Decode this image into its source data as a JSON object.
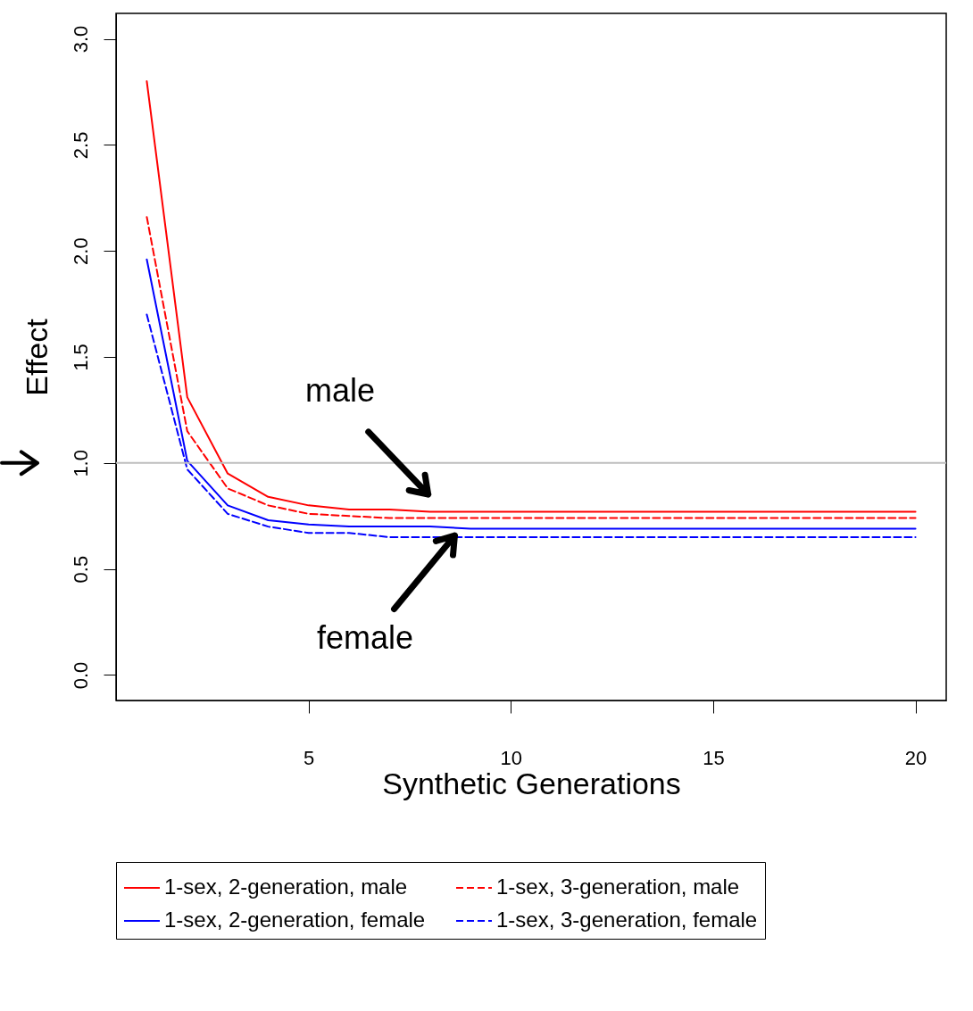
{
  "chart_data": {
    "type": "line",
    "xlabel": "Synthetic Generations",
    "ylabel": "Effect",
    "x": [
      1,
      2,
      3,
      4,
      5,
      6,
      7,
      8,
      9,
      10,
      11,
      12,
      13,
      14,
      15,
      16,
      17,
      18,
      19,
      20
    ],
    "series": [
      {
        "name": "1-sex, 2-generation, male",
        "color": "#ff0000",
        "line_style": "solid",
        "values": [
          2.8,
          1.31,
          0.95,
          0.84,
          0.8,
          0.78,
          0.78,
          0.77,
          0.77,
          0.77,
          0.77,
          0.77,
          0.77,
          0.77,
          0.77,
          0.77,
          0.77,
          0.77,
          0.77,
          0.77
        ]
      },
      {
        "name": "1-sex, 3-generation, male",
        "color": "#ff0000",
        "line_style": "dashed",
        "values": [
          2.16,
          1.15,
          0.88,
          0.8,
          0.76,
          0.75,
          0.74,
          0.74,
          0.74,
          0.74,
          0.74,
          0.74,
          0.74,
          0.74,
          0.74,
          0.74,
          0.74,
          0.74,
          0.74,
          0.74
        ]
      },
      {
        "name": "1-sex, 2-generation, female",
        "color": "#0000ff",
        "line_style": "solid",
        "values": [
          1.96,
          1.01,
          0.8,
          0.73,
          0.71,
          0.7,
          0.7,
          0.7,
          0.69,
          0.69,
          0.69,
          0.69,
          0.69,
          0.69,
          0.69,
          0.69,
          0.69,
          0.69,
          0.69,
          0.69
        ]
      },
      {
        "name": "1-sex, 3-generation, female",
        "color": "#0000ff",
        "line_style": "dashed",
        "values": [
          1.7,
          0.97,
          0.76,
          0.7,
          0.67,
          0.67,
          0.65,
          0.65,
          0.65,
          0.65,
          0.65,
          0.65,
          0.65,
          0.65,
          0.65,
          0.65,
          0.65,
          0.65,
          0.65,
          0.65
        ]
      }
    ],
    "xlim": [
      0.24,
      20.76
    ],
    "xticks": [
      5,
      10,
      15,
      20
    ],
    "ylim": [
      -0.12,
      3.12
    ],
    "yticks": [
      {
        "value": 0,
        "label": "0.0"
      },
      {
        "value": 0.5,
        "label": "0.5"
      },
      {
        "value": 1,
        "label": "1.0"
      },
      {
        "value": 1.5,
        "label": "1.5"
      },
      {
        "value": 2,
        "label": "2.0"
      },
      {
        "value": 2.5,
        "label": "2.5"
      },
      {
        "value": 3,
        "label": "3.0"
      }
    ],
    "ref_lines": [
      {
        "axis": "y",
        "value": 1,
        "color": "#bebebe"
      }
    ],
    "annotations": [
      "male",
      "female"
    ],
    "legend": "bottom",
    "grid": false,
    "marker": "none"
  }
}
